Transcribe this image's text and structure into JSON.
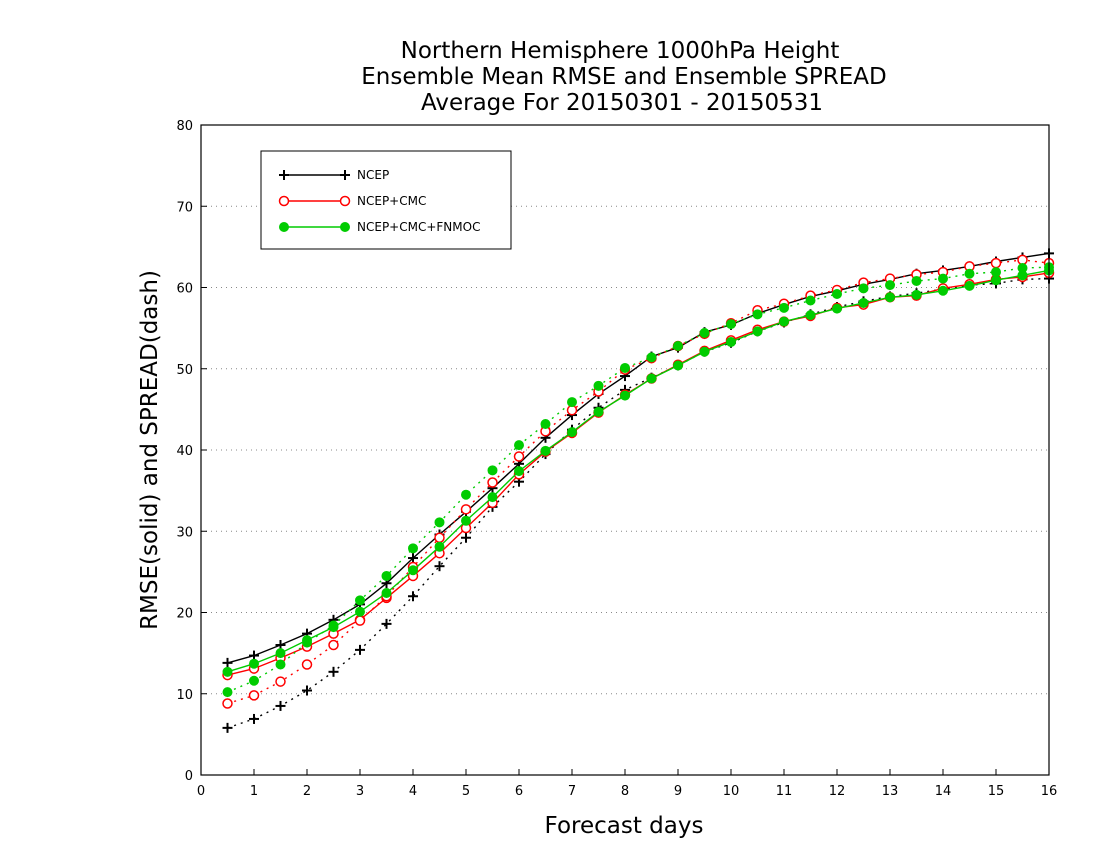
{
  "chart_data": {
    "type": "line",
    "title": [
      "Northern Hemisphere 1000hPa Height",
      "Ensemble Mean RMSE and Ensemble SPREAD",
      "Average For 20150301 - 20150531"
    ],
    "xlabel": "Forecast days",
    "ylabel": "RMSE(solid) and SPREAD(dash)",
    "xlim": [
      0,
      16
    ],
    "ylim": [
      0,
      80
    ],
    "xticks": [
      0,
      1,
      2,
      3,
      4,
      5,
      6,
      7,
      8,
      9,
      10,
      11,
      12,
      13,
      14,
      15,
      16
    ],
    "yticks": [
      0,
      10,
      20,
      30,
      40,
      50,
      60,
      70,
      80
    ],
    "grid": true,
    "legend_position": "top-left",
    "x": [
      0.5,
      1,
      1.5,
      2,
      2.5,
      3,
      3.5,
      4,
      4.5,
      5,
      5.5,
      6,
      6.5,
      7,
      7.5,
      8,
      8.5,
      9,
      9.5,
      10,
      10.5,
      11,
      11.5,
      12,
      12.5,
      13,
      13.5,
      14,
      14.5,
      15,
      15.5,
      16
    ],
    "series": [
      {
        "name": "NCEP",
        "color": "#000000",
        "marker": "plus",
        "rmse": [
          13.8,
          14.7,
          16.0,
          17.4,
          19.1,
          21.0,
          23.6,
          26.7,
          29.6,
          32.4,
          35.3,
          38.3,
          41.5,
          44.3,
          46.9,
          49.1,
          51.5,
          52.6,
          54.5,
          55.4,
          56.8,
          57.9,
          58.9,
          59.6,
          60.4,
          61.0,
          61.7,
          62.1,
          62.6,
          63.2,
          63.7,
          64.2
        ],
        "spread": [
          5.8,
          6.9,
          8.5,
          10.4,
          12.7,
          15.4,
          18.6,
          22.0,
          25.7,
          29.2,
          33.0,
          36.1,
          39.5,
          42.5,
          45.2,
          47.4,
          48.9,
          50.4,
          52.1,
          53.2,
          54.6,
          55.7,
          56.7,
          57.6,
          58.3,
          58.9,
          59.3,
          59.8,
          60.3,
          60.5,
          61.0,
          61.1
        ]
      },
      {
        "name": "NCEP+CMC",
        "color": "#ff0000",
        "marker": "open-circle",
        "rmse": [
          12.3,
          13.1,
          14.4,
          15.8,
          17.4,
          19.1,
          21.8,
          24.5,
          27.3,
          30.4,
          33.5,
          37.0,
          39.8,
          42.1,
          44.6,
          46.8,
          48.8,
          50.5,
          52.2,
          53.5,
          54.8,
          55.8,
          56.5,
          57.5,
          57.9,
          58.8,
          59.0,
          59.9,
          60.4,
          61.0,
          61.3,
          61.8
        ],
        "spread": [
          8.8,
          9.8,
          11.5,
          13.6,
          16.0,
          19.0,
          22.0,
          25.6,
          29.2,
          32.7,
          36.0,
          39.2,
          42.3,
          44.9,
          47.2,
          49.9,
          51.3,
          52.8,
          54.3,
          55.6,
          57.2,
          58.0,
          59.0,
          59.7,
          60.6,
          61.1,
          61.6,
          61.9,
          62.6,
          63.0,
          63.4,
          63.0
        ]
      },
      {
        "name": "NCEP+CMC+FNMOC",
        "color": "#00cc00",
        "marker": "filled-circle",
        "rmse": [
          12.7,
          13.7,
          15.0,
          16.6,
          18.2,
          20.1,
          22.4,
          25.2,
          28.1,
          31.3,
          34.2,
          37.4,
          39.9,
          42.2,
          44.7,
          46.7,
          48.8,
          50.4,
          52.1,
          53.3,
          54.6,
          55.8,
          56.6,
          57.4,
          58.1,
          58.8,
          59.1,
          59.6,
          60.2,
          60.9,
          61.5,
          62.1
        ],
        "spread": [
          10.2,
          11.6,
          13.6,
          16.3,
          18.4,
          21.5,
          24.5,
          27.9,
          31.1,
          34.5,
          37.5,
          40.6,
          43.2,
          45.9,
          47.9,
          50.1,
          51.4,
          52.8,
          54.4,
          55.5,
          56.7,
          57.5,
          58.4,
          59.2,
          59.9,
          60.3,
          60.8,
          61.1,
          61.7,
          61.9,
          62.4,
          62.5
        ]
      }
    ]
  }
}
